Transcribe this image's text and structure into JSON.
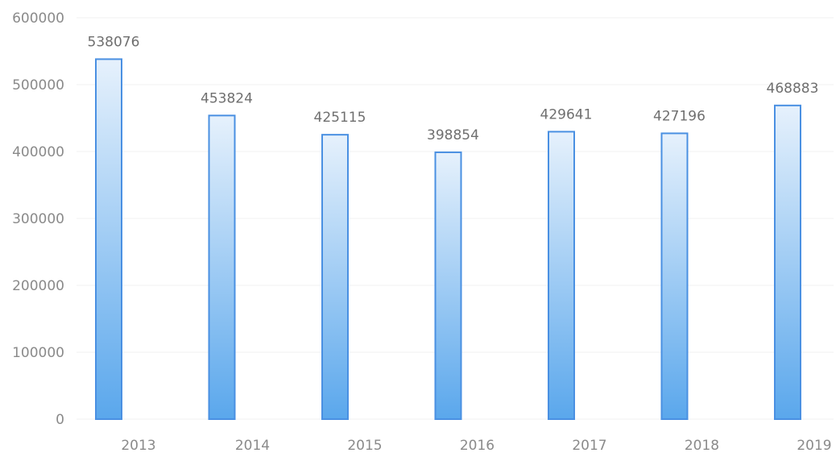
{
  "chart_data": {
    "type": "bar",
    "title": "",
    "xlabel": "",
    "ylabel": "",
    "categories": [
      "2013",
      "2014",
      "2015",
      "2016",
      "2017",
      "2018",
      "2019"
    ],
    "values": [
      538076,
      453824,
      425115,
      398854,
      429641,
      427196,
      468883
    ],
    "data_labels": [
      "538076",
      "453824",
      "425115",
      "398854",
      "429641",
      "427196",
      "468883"
    ],
    "ylim": [
      0,
      600000
    ],
    "yticks": [
      0,
      100000,
      200000,
      300000,
      400000,
      500000,
      600000
    ],
    "ytick_labels": [
      "0",
      "100000",
      "200000",
      "300000",
      "400000",
      "500000",
      "600000"
    ],
    "grid": true,
    "legend": "none",
    "colors": {
      "bar_top": "#e6f1fc",
      "bar_bottom": "#5aa7ec",
      "bar_border": "#4a90e2"
    }
  }
}
